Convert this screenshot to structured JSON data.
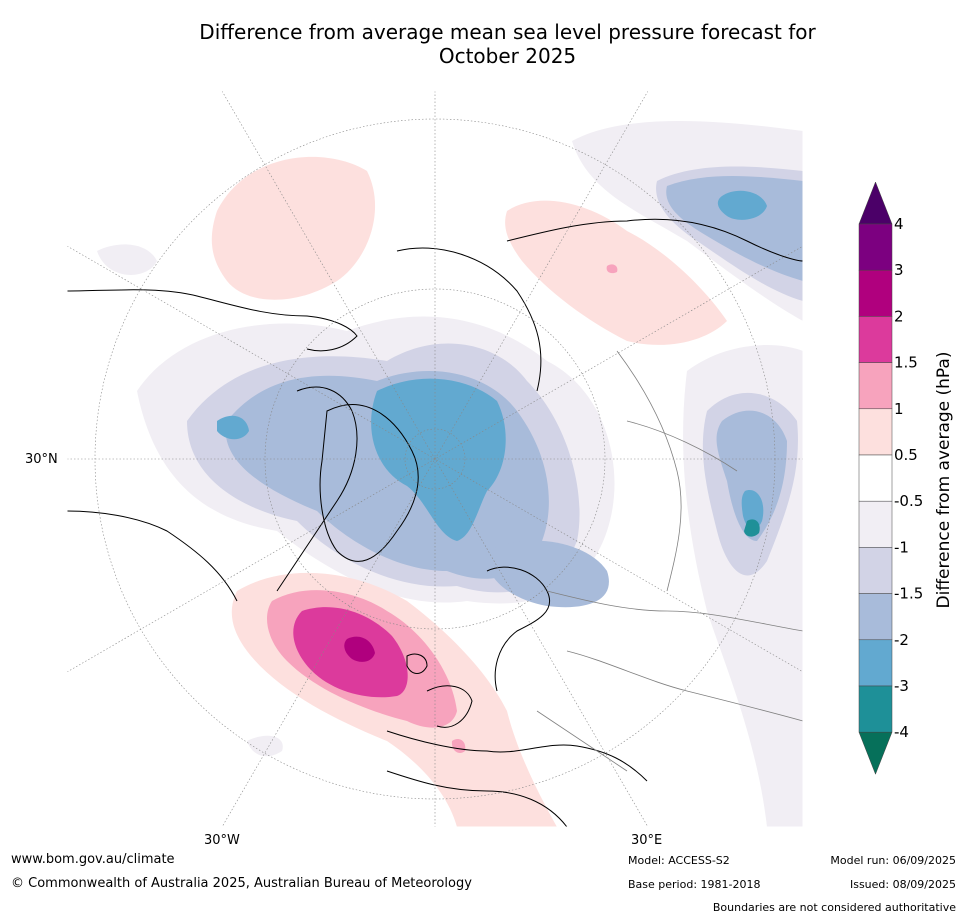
{
  "title": {
    "line1": "Difference from average mean sea level pressure forecast for",
    "line2": "October 2025"
  },
  "map": {
    "projection": "polar stereographic (north)",
    "labels": {
      "lat_30n": "30°N",
      "lon_30w": "30°W",
      "lon_30e": "30°E"
    },
    "features": [
      "negative anomaly over Arctic / Greenland (-2 to -3 hPa)",
      "positive anomaly west of Ireland (up to 3 hPa)",
      "negative anomaly over Scandinavia / northern Russia",
      "small -4 hPa area over central Asia"
    ]
  },
  "colorbar": {
    "label": "Difference from average (hPa)",
    "ticks": [
      "4",
      "3",
      "2",
      "1.5",
      "1",
      "0.5",
      "-0.5",
      "-1",
      "-1.5",
      "-2",
      "-3",
      "-4"
    ],
    "colors": [
      "#4b0068",
      "#7c0080",
      "#b0007e",
      "#dc3a9c",
      "#f7a3bd",
      "#fde0de",
      "#ffffff",
      "#f1eef4",
      "#d2d3e6",
      "#a8bbda",
      "#62a9d0",
      "#1e9098",
      "#06705a"
    ]
  },
  "footer": {
    "website": "www.bom.gov.au/climate",
    "copyright": "© Commonwealth of Australia 2025, Australian Bureau of Meteorology",
    "model": "Model: ACCESS-S2",
    "base_period": "Base period: 1981-2018",
    "model_run": "Model run: 06/09/2025",
    "issued": "Issued: 08/09/2025",
    "disclaimer": "Boundaries are not considered authoritative"
  }
}
